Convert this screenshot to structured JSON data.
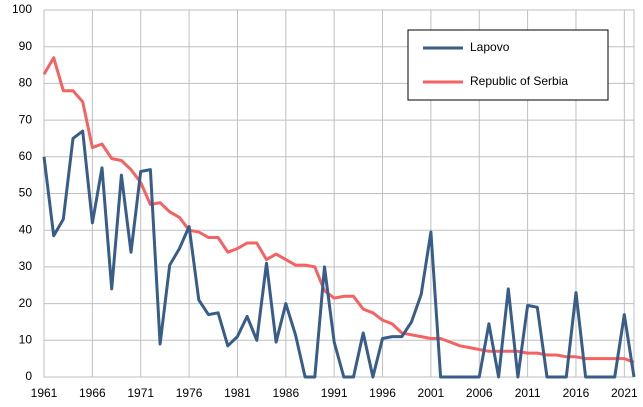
{
  "chart_data": {
    "type": "line",
    "x": [
      1961,
      1962,
      1963,
      1964,
      1965,
      1966,
      1967,
      1968,
      1969,
      1970,
      1971,
      1972,
      1973,
      1974,
      1975,
      1976,
      1977,
      1978,
      1979,
      1980,
      1981,
      1982,
      1983,
      1984,
      1985,
      1986,
      1987,
      1988,
      1989,
      1990,
      1991,
      1992,
      1993,
      1994,
      1995,
      1996,
      1997,
      1998,
      1999,
      2000,
      2001,
      2002,
      2003,
      2004,
      2005,
      2006,
      2007,
      2008,
      2009,
      2010,
      2011,
      2012,
      2013,
      2014,
      2015,
      2016,
      2017,
      2018,
      2019,
      2020,
      2021,
      2022
    ],
    "series": [
      {
        "name": "Lapovo",
        "color": "#385d8a",
        "values": [
          60,
          38.5,
          43,
          65,
          67,
          42,
          57,
          24,
          55,
          34,
          56,
          56.5,
          9,
          30.5,
          35,
          41,
          21,
          17,
          17.5,
          8.5,
          11,
          16.5,
          10,
          31,
          9.5,
          20,
          11.5,
          0,
          0,
          30,
          9.5,
          0,
          0,
          12,
          0,
          10.5,
          11,
          11,
          15,
          22.5,
          39.5,
          0,
          0,
          0,
          0,
          0,
          14.5,
          0,
          24,
          0,
          19.5,
          19,
          0,
          0,
          0,
          23,
          0,
          0,
          0,
          0,
          17,
          0
        ]
      },
      {
        "name": "Republic of Serbia",
        "color": "#f56262",
        "values": [
          82.5,
          87,
          78,
          78,
          75,
          62.5,
          63.5,
          59.5,
          59,
          56.5,
          53,
          47,
          47.5,
          45,
          43.5,
          40,
          39.5,
          38,
          38,
          34,
          35,
          36.5,
          36.5,
          32,
          33.5,
          32,
          30.5,
          30.5,
          30,
          23.5,
          21.5,
          22,
          22,
          18.5,
          17.5,
          15.5,
          14.5,
          12,
          11.5,
          11,
          10.5,
          10.5,
          9.5,
          8.5,
          8,
          7.5,
          7,
          7,
          7,
          7,
          6.5,
          6.5,
          6,
          6,
          5.5,
          5.5,
          5,
          5,
          5,
          5,
          5,
          4
        ]
      }
    ],
    "xlim": [
      1961,
      2022
    ],
    "xticks": [
      1961,
      1966,
      1971,
      1976,
      1981,
      1986,
      1991,
      1996,
      2001,
      2006,
      2011,
      2016,
      2021
    ],
    "ylim": [
      0,
      100
    ],
    "yticks": [
      0,
      10,
      20,
      30,
      40,
      50,
      60,
      70,
      80,
      90,
      100
    ],
    "grid": true,
    "legend": "upper right"
  }
}
